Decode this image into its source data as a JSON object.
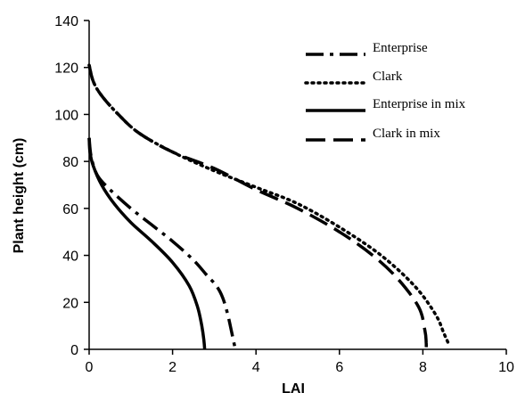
{
  "chart_data": {
    "type": "line",
    "title": "",
    "xlabel": "LAI",
    "ylabel": "Plant height (cm)",
    "xlim": [
      0,
      10
    ],
    "ylim": [
      0,
      140
    ],
    "x_ticks": [
      "0",
      "2",
      "4",
      "6",
      "8",
      "10"
    ],
    "y_ticks": [
      "0",
      "20",
      "40",
      "60",
      "80",
      "100",
      "120",
      "140"
    ],
    "grid": false,
    "legend_position": "top-right",
    "series": [
      {
        "name": "Enterprise",
        "style": "dash-dot",
        "points": [
          [
            0.0,
            90
          ],
          [
            0.05,
            82
          ],
          [
            0.2,
            74
          ],
          [
            0.5,
            68
          ],
          [
            1.0,
            60
          ],
          [
            1.5,
            53
          ],
          [
            2.0,
            46
          ],
          [
            2.5,
            38
          ],
          [
            2.8,
            32
          ],
          [
            3.05,
            27
          ],
          [
            3.2,
            22
          ],
          [
            3.32,
            15
          ],
          [
            3.42,
            7
          ],
          [
            3.48,
            2
          ],
          [
            3.5,
            0
          ]
        ]
      },
      {
        "name": "Clark",
        "style": "dotted",
        "points": [
          [
            0.0,
            121
          ],
          [
            0.1,
            114
          ],
          [
            0.3,
            108
          ],
          [
            0.7,
            100
          ],
          [
            1.2,
            92
          ],
          [
            2.0,
            84
          ],
          [
            3.0,
            76
          ],
          [
            4.0,
            69
          ],
          [
            5.0,
            62
          ],
          [
            6.0,
            52
          ],
          [
            7.0,
            40
          ],
          [
            7.8,
            27
          ],
          [
            8.3,
            15
          ],
          [
            8.5,
            7
          ],
          [
            8.6,
            3
          ]
        ]
      },
      {
        "name": "Enterprise in mix",
        "style": "solid",
        "points": [
          [
            0.0,
            90
          ],
          [
            0.02,
            84
          ],
          [
            0.1,
            78
          ],
          [
            0.3,
            70
          ],
          [
            0.6,
            62
          ],
          [
            1.0,
            54
          ],
          [
            1.5,
            46
          ],
          [
            2.0,
            37
          ],
          [
            2.4,
            27
          ],
          [
            2.6,
            18
          ],
          [
            2.7,
            10
          ],
          [
            2.75,
            4
          ],
          [
            2.77,
            0
          ]
        ]
      },
      {
        "name": "Clark in mix",
        "style": "dashed",
        "points": [
          [
            0.0,
            121
          ],
          [
            0.1,
            114
          ],
          [
            0.3,
            108
          ],
          [
            0.7,
            100
          ],
          [
            1.2,
            92
          ],
          [
            2.0,
            84
          ],
          [
            3.0,
            77
          ],
          [
            4.0,
            68
          ],
          [
            5.0,
            60
          ],
          [
            6.0,
            50
          ],
          [
            6.8,
            40
          ],
          [
            7.4,
            30
          ],
          [
            7.9,
            18
          ],
          [
            8.05,
            8
          ],
          [
            8.08,
            3
          ],
          [
            8.08,
            0
          ]
        ]
      }
    ]
  }
}
